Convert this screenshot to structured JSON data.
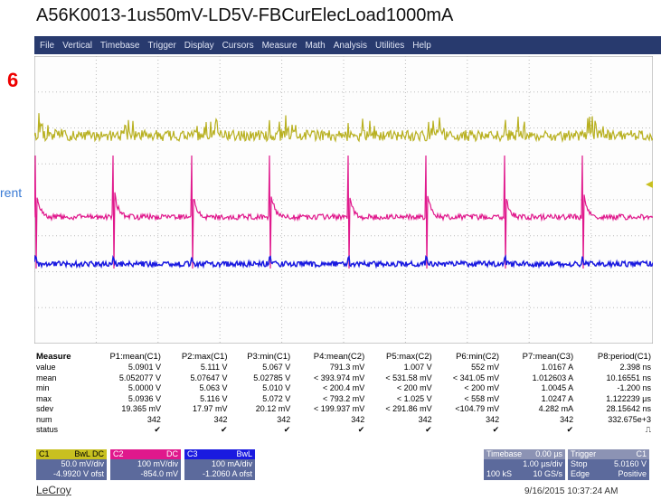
{
  "title": "A56K0013-1us50mV-LD5V-FBCurElecLoad1000mA",
  "overlay": {
    "number": "6",
    "side_text": "rent"
  },
  "menu": [
    "File",
    "Vertical",
    "Timebase",
    "Trigger",
    "Display",
    "Cursors",
    "Measure",
    "Math",
    "Analysis",
    "Utilities",
    "Help"
  ],
  "measure": {
    "header": [
      "Measure",
      "P1:mean(C1)",
      "P2:max(C1)",
      "P3:min(C1)",
      "P4:mean(C2)",
      "P5:max(C2)",
      "P6:min(C2)",
      "P7:mean(C3)",
      "P8:period(C1)"
    ],
    "rows": [
      {
        "label": "value",
        "cells": [
          "5.0901 V",
          "5.111 V",
          "5.067 V",
          "791.3 mV",
          "1.007 V",
          "552 mV",
          "1.0167 A",
          "2.398 ns"
        ]
      },
      {
        "label": "mean",
        "cells": [
          "5.052077 V",
          "5.07647 V",
          "5.02785 V",
          "< 393.974 mV",
          "< 531.58 mV",
          "< 341.05 mV",
          "1.012603 A",
          "10.16551 ns"
        ]
      },
      {
        "label": "min",
        "cells": [
          "5.0000 V",
          "5.063 V",
          "5.010 V",
          "< 200.4 mV",
          "< 200 mV",
          "< 200 mV",
          "1.0045 A",
          "-1.200 ns"
        ]
      },
      {
        "label": "max",
        "cells": [
          "5.0936 V",
          "5.116 V",
          "5.072 V",
          "< 793.2 mV",
          "< 1.025 V",
          "< 558 mV",
          "1.0247 A",
          "1.122239 µs"
        ]
      },
      {
        "label": "sdev",
        "cells": [
          "19.365 mV",
          "17.97 mV",
          "20.12 mV",
          "< 199.937 mV",
          "< 291.86 mV",
          "<104.79 mV",
          "4.282 mA",
          "28.15642 ns"
        ]
      },
      {
        "label": "num",
        "cells": [
          "342",
          "342",
          "342",
          "342",
          "342",
          "342",
          "342",
          "332.675e+3"
        ]
      },
      {
        "label": "status",
        "cells": [
          "✔",
          "✔",
          "✔",
          "✔",
          "✔",
          "✔",
          "✔",
          "⎍"
        ]
      }
    ]
  },
  "channels": [
    {
      "name": "C1",
      "tag": "BwL DC",
      "scale": "50.0 mV/div",
      "offset": "-4.9920 V ofst"
    },
    {
      "name": "C2",
      "tag": "DC",
      "scale": "100 mV/div",
      "offset": "-854.0 mV"
    },
    {
      "name": "C3",
      "tag": "BwL",
      "scale": "100 mA/div",
      "offset": "-1.2060 A ofst"
    }
  ],
  "timebase": {
    "title": "Timebase",
    "delay": "0.00 µs",
    "per_div": "1.00 µs/div",
    "samples": "100 kS",
    "rate": "10 GS/s"
  },
  "trigger": {
    "title": "Trigger",
    "source": "C1",
    "mode": "Stop",
    "level": "5.0160 V",
    "type": "Edge",
    "slope": "Positive"
  },
  "brand": "LeCroy",
  "timestamp": "9/16/2015 10:37:24 AM"
}
